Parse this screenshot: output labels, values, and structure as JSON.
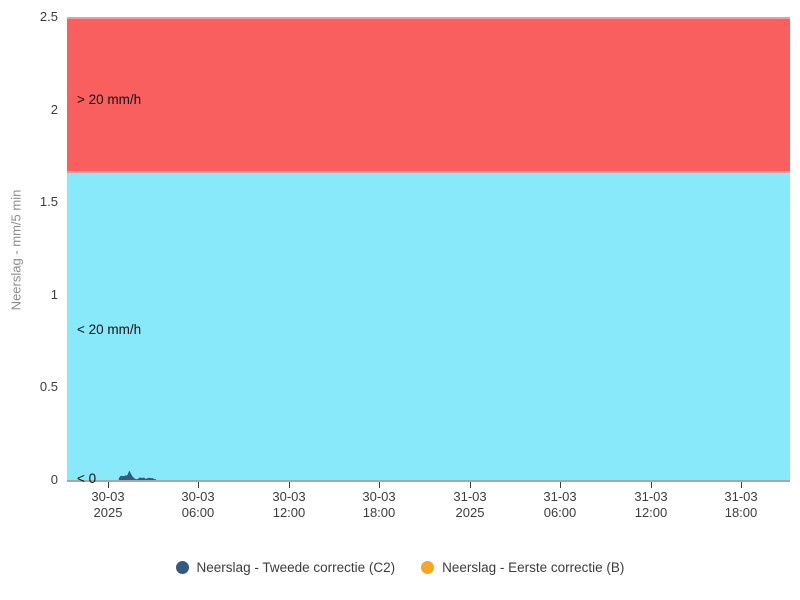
{
  "chart_data": {
    "type": "area",
    "title": "",
    "xlabel": "",
    "ylabel": "Neerslag - mm/5 min",
    "ylim": [
      0,
      2.5
    ],
    "grid": false,
    "legend_position": "bottom-center",
    "y_ticks": [
      "2.5",
      "2",
      "1.5",
      "1",
      "0.5",
      "0"
    ],
    "x_ticks": [
      {
        "line1": "30-03",
        "line2": "2025"
      },
      {
        "line1": "30-03",
        "line2": "06:00"
      },
      {
        "line1": "30-03",
        "line2": "12:00"
      },
      {
        "line1": "30-03",
        "line2": "18:00"
      },
      {
        "line1": "31-03",
        "line2": "2025"
      },
      {
        "line1": "31-03",
        "line2": "06:00"
      },
      {
        "line1": "31-03",
        "line2": "12:00"
      },
      {
        "line1": "31-03",
        "line2": "18:00"
      }
    ],
    "bands": [
      {
        "label": "> 20 mm/h",
        "from": 1.667,
        "to": 2.5,
        "color": "#fa5f5f"
      },
      {
        "label": "< 20 mm/h",
        "from": 0,
        "to": 1.667,
        "color": "#88e9fa"
      },
      {
        "label": "< 0",
        "at": 0
      }
    ],
    "series": [
      {
        "name": "Neerslag - Tweede correctie (C2)",
        "color": "#35597f",
        "points": [
          {
            "time": "30-03 00:45",
            "value": 0.008
          },
          {
            "time": "30-03 00:50",
            "value": 0.018
          },
          {
            "time": "30-03 00:55",
            "value": 0.02
          },
          {
            "time": "30-03 01:00",
            "value": 0.018
          },
          {
            "time": "30-03 01:05",
            "value": 0.02
          },
          {
            "time": "30-03 01:10",
            "value": 0.022
          },
          {
            "time": "30-03 01:15",
            "value": 0.02
          },
          {
            "time": "30-03 01:20",
            "value": 0.028
          },
          {
            "time": "30-03 01:25",
            "value": 0.045
          },
          {
            "time": "30-03 01:30",
            "value": 0.032
          },
          {
            "time": "30-03 01:35",
            "value": 0.02
          },
          {
            "time": "30-03 01:40",
            "value": 0.012
          },
          {
            "time": "30-03 01:45",
            "value": 0.006
          },
          {
            "time": "30-03 01:50",
            "value": 0.002
          },
          {
            "time": "30-03 02:00",
            "value": 0.002
          },
          {
            "time": "30-03 02:05",
            "value": 0.01
          },
          {
            "time": "30-03 02:10",
            "value": 0.01
          },
          {
            "time": "30-03 02:15",
            "value": 0.008
          },
          {
            "time": "30-03 02:20",
            "value": 0.01
          },
          {
            "time": "30-03 02:25",
            "value": 0.009
          },
          {
            "time": "30-03 02:30",
            "value": 0.002
          },
          {
            "time": "30-03 02:40",
            "value": 0.008
          },
          {
            "time": "30-03 02:45",
            "value": 0.009
          },
          {
            "time": "30-03 02:50",
            "value": 0.007
          },
          {
            "time": "30-03 02:55",
            "value": 0.008
          },
          {
            "time": "30-03 03:00",
            "value": 0.006
          },
          {
            "time": "30-03 03:05",
            "value": 0.002
          },
          {
            "time": "30-03 03:10",
            "value": 0.001
          }
        ]
      },
      {
        "name": "Neerslag - Eerste correctie (B)",
        "color": "#f5a623",
        "points": []
      }
    ]
  },
  "legend": {
    "items": [
      {
        "label": "Neerslag - Tweede correctie (C2)",
        "color": "#35597f"
      },
      {
        "label": "Neerslag - Eerste correctie (B)",
        "color": "#f5a623"
      }
    ]
  },
  "axis": {
    "line_color": "#a3a9ae",
    "tick_text_color": "#3c3c3c",
    "ylabel_color": "#8c8c8c"
  }
}
